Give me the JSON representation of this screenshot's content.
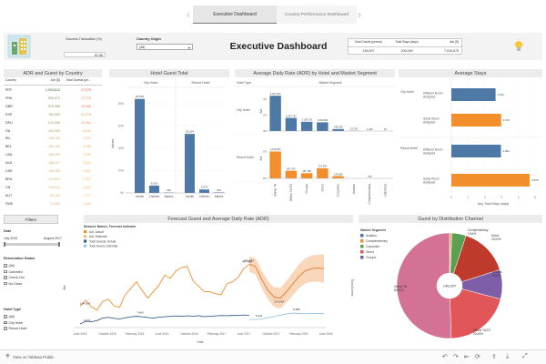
{
  "tabs": [
    {
      "label": "Executive Dashboard",
      "active": true
    },
    {
      "label": "Country Performance Dashboard",
      "active": false
    }
  ],
  "header": {
    "title": "Executive Dashboard",
    "success_label": "Success Transaction (%)",
    "success_value": "62.56",
    "country_label": "Country Origin",
    "country_value": "(All)",
    "kpi_headers": [
      "Total Guests (person)",
      "Total Stays (days)",
      "Adr ($)"
    ],
    "kpi_values": [
      "146,007",
      "205,049",
      "7,016,675"
    ]
  },
  "adr_country": {
    "title": "ADR and Guest by Country",
    "headers": [
      "Country",
      "Adr ($)",
      "Total Guests (pe..."
    ],
    "rows": [
      [
        "PRT",
        "1,903,612",
        "27,075"
      ],
      [
        "FRA",
        "856,573",
        "17,779"
      ],
      [
        "GBR",
        "876,386",
        "15,996"
      ],
      [
        "ESP",
        "784,969",
        "12,074"
      ],
      [
        "DEU",
        "610,558",
        "10,961"
      ],
      [
        "ITA",
        "442,009",
        "6,094"
      ],
      [
        "IRL",
        "195,795",
        "4,041"
      ],
      [
        "BEL",
        "184,440",
        "3,485"
      ],
      [
        "USA",
        "182,900",
        "3,394"
      ],
      [
        "NLD",
        "166,207",
        "3,094"
      ],
      [
        "CHE",
        "155,259",
        "2,581"
      ],
      [
        "BRA",
        "124,904",
        "2,287"
      ],
      [
        "CN",
        "118,614",
        "2,036"
      ],
      [
        "AUT",
        "96,209",
        "1,777"
      ],
      [
        "SWE",
        "73,890",
        "1,505"
      ]
    ]
  },
  "chart_guest": {
    "type": "bar",
    "title": "Hotel Guest Total",
    "ylabel": "Values",
    "groups": [
      "City Hotel",
      "Resort Hotel"
    ],
    "categories": [
      "Adults",
      "Children",
      "Babies"
    ],
    "series": [
      {
        "name": "City Hotel",
        "values": [
          84510,
          6618,
          329
        ]
      },
      {
        "name": "Resort Hotel",
        "values": [
          53024,
          3075,
          452
        ]
      }
    ],
    "labels": [
      "84,510",
      "6,618",
      "329",
      "53,024",
      "3,075",
      "452"
    ],
    "ylim": [
      0,
      90000
    ],
    "ticks": [
      "0K",
      "20K",
      "40K",
      "60K",
      "80K"
    ]
  },
  "chart_adr": {
    "type": "bar",
    "title": "Average Daily Rate (ADR) by Hotel and Market Segment",
    "hotel_type_label": "Hotel Type",
    "market_segment_label": "Market Segment",
    "ylabel": "Adr",
    "hotels": [
      "City Hotel",
      "Resort Hotel"
    ],
    "categories": [
      "Online TA",
      "Offline TA/TO",
      "Groups",
      "Direct",
      "Corporate",
      "Aviation",
      "Complementary",
      "Undefined"
    ],
    "series": [
      {
        "name": "City Hotel",
        "values": [
          4407064,
          1637787,
          1155703,
          1092080,
          249188,
          23734,
          1409,
          30
        ]
      },
      {
        "name": "Resort Hotel",
        "values": [
          2014844,
          567076,
          387768,
          757304,
          170559,
          0,
          735,
          0
        ]
      }
    ],
    "labels_city": [
      "4,407,064",
      "1,637,787",
      "1,155,703",
      "1,092,080",
      "249,188",
      "23,734",
      "1,409",
      "30"
    ],
    "labels_resort": [
      "2,014,844",
      "567,076",
      "387,768",
      "757,304",
      "170,559",
      "",
      "735",
      ""
    ],
    "ticks_city": [
      "0M",
      "2M",
      "4M"
    ],
    "ticks_resort": [
      "0M",
      "2M"
    ]
  },
  "chart_stays": {
    "type": "bar",
    "title": "Average Stays",
    "xlabel": "Avg. Total Stays (days)",
    "hotels": [
      "City Hotel",
      "Resort Hotel"
    ],
    "categories": [
      "Different Room Assigned",
      "Same Room Assigned"
    ],
    "series": [
      {
        "name": "City Hotel",
        "values": [
          2.641,
          2.972
        ]
      },
      {
        "name": "Resort Hotel",
        "values": [
          2.961,
          4.679
        ]
      }
    ],
    "labels": [
      "2.641",
      "2.972",
      "2.961",
      "4.679"
    ],
    "xlim": [
      0,
      5
    ],
    "ticks": [
      "0",
      "1",
      "2",
      "3",
      "4",
      "5"
    ]
  },
  "filters": {
    "button": "Filters",
    "date_label": "Date",
    "date_from": "July 2015",
    "date_to": "August 2017",
    "reservation_label": "Reservation Status",
    "reservation_options": [
      "(All)",
      "Canceled",
      "Check-Out",
      "No-Show"
    ],
    "hotel_type_label": "Hotel Type",
    "hotel_options": [
      "(All)",
      "City Hotel",
      "Resort Hotel"
    ]
  },
  "chart_forecast": {
    "type": "line",
    "title": "Forecast Guest and Average Daily Rate (ADR)",
    "legend_title": "Measure Names, Forecast indicator",
    "legend": [
      "Adr, Actual",
      "Adr, Estimate",
      "Total Guests, Actual",
      "Total Guest, Estimate"
    ],
    "ylabel_left": "Adr",
    "ylabel_right": "Total Guests",
    "xlabel": "Date",
    "x_ticks": [
      "June 2015",
      "October 2015",
      "February 2016",
      "June 2016",
      "October 2016",
      "February 2017",
      "June 2017",
      "October 2017",
      "February 2018",
      "June 2018"
    ],
    "annotations": [
      "194,424",
      "2,371",
      "7,469",
      "407,469",
      "578,594",
      "270,664",
      "5,322",
      "9,488"
    ],
    "adr_actual": [
      195,
      250,
      190,
      160,
      240,
      260,
      200,
      185,
      300,
      360,
      420,
      340,
      270,
      330,
      390,
      480,
      450,
      520,
      550,
      560,
      430,
      380,
      330,
      330,
      310,
      300,
      400,
      420,
      460,
      540,
      580
    ],
    "adr_estimate": [
      580,
      560,
      440,
      340,
      280,
      270,
      330,
      400,
      470,
      520,
      540,
      545,
      540
    ],
    "guests_actual": [
      2.37,
      4.1,
      3.8,
      4.6,
      6.2,
      6.7,
      6.1,
      5.6,
      6.4,
      7.0,
      7.46,
      7.0,
      6.6,
      6.2,
      6.8,
      7.1,
      7.3,
      7.6,
      7.4,
      7.7,
      7.5,
      7.8,
      7.2,
      7.4,
      7.6,
      7.9,
      7.8,
      8.0,
      7.9,
      8.2,
      8.0
    ],
    "guests_estimate": [
      5.3,
      5.32,
      5.6,
      6.4,
      7.3,
      8.2,
      9.0,
      9.49,
      9.2,
      9.1,
      9.3,
      9.2,
      9.3
    ]
  },
  "chart_channel": {
    "type": "pie",
    "title": "Guest by Distribution Channel",
    "legend_title": "Market Segment",
    "legend": [
      "Aviation",
      "Complementary",
      "Corporate",
      "Direct",
      "Groups"
    ],
    "center_label": "146,007",
    "slices": [
      {
        "name": "Online TA",
        "value": 50.51
      },
      {
        "name": "Offline TA/TO",
        "value": 20.4
      },
      {
        "name": "Groups",
        "value": 9.02
      },
      {
        "name": "Direct",
        "value": 15.0
      },
      {
        "name": "Corporate",
        "value": 4.3
      },
      {
        "name": "Complementary",
        "value": 0.54
      },
      {
        "name": "Aviation",
        "value": 0.23
      }
    ],
    "slice_labels": {
      "online": "Online TA\n50.51%",
      "offline": "Offline TA/TO\n20.40%",
      "groups": "Groups\n9.02%",
      "direct": "Direct\n15.00%",
      "complementary": "Complementary\n0.54%"
    }
  },
  "footer": {
    "tableau_label": "View on Tableau Public",
    "icons": [
      "undo-icon",
      "redo-icon",
      "revert-icon",
      "refresh-icon",
      "share-icon",
      "download-icon",
      "fullscreen-icon"
    ]
  },
  "colors": {
    "blue": "#4e79a7",
    "orange": "#f28e2b",
    "red": "#e15759",
    "teal": "#76b7b2",
    "green": "#59a14f",
    "yellow": "#edc948",
    "purple": "#b07aa1",
    "pink": "#ff9da7",
    "gray": "#bab0ac",
    "online": "#d37295",
    "offline": "#8cd17d"
  }
}
